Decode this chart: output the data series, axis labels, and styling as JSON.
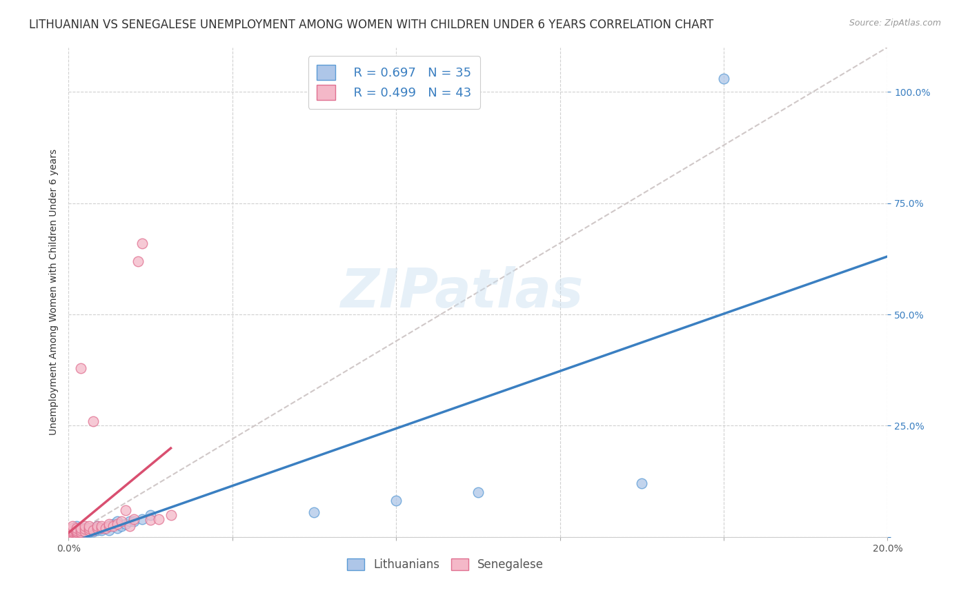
{
  "title": "LITHUANIAN VS SENEGALESE UNEMPLOYMENT AMONG WOMEN WITH CHILDREN UNDER 6 YEARS CORRELATION CHART",
  "source": "Source: ZipAtlas.com",
  "ylabel": "Unemployment Among Women with Children Under 6 years",
  "xlim": [
    0,
    0.2
  ],
  "ylim": [
    0,
    1.1
  ],
  "xticks": [
    0.0,
    0.04,
    0.08,
    0.12,
    0.16,
    0.2
  ],
  "xticklabels": [
    "0.0%",
    "",
    "",
    "",
    "",
    "20.0%"
  ],
  "ytick_positions": [
    0,
    0.25,
    0.5,
    0.75,
    1.0
  ],
  "ytick_labels": [
    "",
    "25.0%",
    "50.0%",
    "75.0%",
    "100.0%"
  ],
  "legend_items": [
    {
      "color": "#aec6e8",
      "edge": "#5b9bd5",
      "R": "0.697",
      "N": "35"
    },
    {
      "color": "#f4b8c8",
      "edge": "#e07090",
      "R": "0.499",
      "N": "43"
    }
  ],
  "legend_labels": [
    "Lithuanians",
    "Senegalese"
  ],
  "blue_color": "#aec6e8",
  "blue_edge": "#5b9bd5",
  "pink_color": "#f4b8c8",
  "pink_edge": "#e07090",
  "blue_line_color": "#3a7fc1",
  "pink_line_color": "#d94f70",
  "ref_line_color": "#d0c8c8",
  "watermark": "ZIPatlas",
  "title_fontsize": 12,
  "axis_label_fontsize": 10,
  "tick_fontsize": 10,
  "blue_scatter_x": [
    0.001,
    0.001,
    0.002,
    0.002,
    0.002,
    0.003,
    0.003,
    0.003,
    0.004,
    0.004,
    0.005,
    0.005,
    0.006,
    0.006,
    0.007,
    0.007,
    0.008,
    0.008,
    0.009,
    0.01,
    0.01,
    0.011,
    0.012,
    0.012,
    0.013,
    0.014,
    0.015,
    0.016,
    0.018,
    0.02,
    0.06,
    0.08,
    0.1,
    0.14,
    0.16
  ],
  "blue_scatter_y": [
    0.005,
    0.01,
    0.008,
    0.015,
    0.025,
    0.01,
    0.015,
    0.02,
    0.01,
    0.02,
    0.01,
    0.015,
    0.012,
    0.018,
    0.015,
    0.025,
    0.015,
    0.02,
    0.02,
    0.015,
    0.025,
    0.03,
    0.02,
    0.035,
    0.025,
    0.03,
    0.035,
    0.035,
    0.04,
    0.05,
    0.055,
    0.082,
    0.1,
    0.12,
    1.03
  ],
  "pink_scatter_x": [
    0.001,
    0.001,
    0.001,
    0.001,
    0.001,
    0.001,
    0.001,
    0.001,
    0.002,
    0.002,
    0.002,
    0.002,
    0.002,
    0.003,
    0.003,
    0.003,
    0.003,
    0.004,
    0.004,
    0.004,
    0.005,
    0.005,
    0.005,
    0.006,
    0.006,
    0.007,
    0.007,
    0.008,
    0.008,
    0.009,
    0.01,
    0.01,
    0.011,
    0.012,
    0.013,
    0.014,
    0.015,
    0.016,
    0.017,
    0.018,
    0.02,
    0.022,
    0.025
  ],
  "pink_scatter_y": [
    0.005,
    0.005,
    0.008,
    0.01,
    0.012,
    0.015,
    0.02,
    0.025,
    0.008,
    0.01,
    0.012,
    0.015,
    0.02,
    0.01,
    0.015,
    0.02,
    0.38,
    0.012,
    0.018,
    0.025,
    0.015,
    0.02,
    0.025,
    0.015,
    0.26,
    0.02,
    0.025,
    0.02,
    0.025,
    0.02,
    0.025,
    0.03,
    0.025,
    0.03,
    0.035,
    0.06,
    0.025,
    0.04,
    0.62,
    0.66,
    0.038,
    0.04,
    0.05
  ]
}
